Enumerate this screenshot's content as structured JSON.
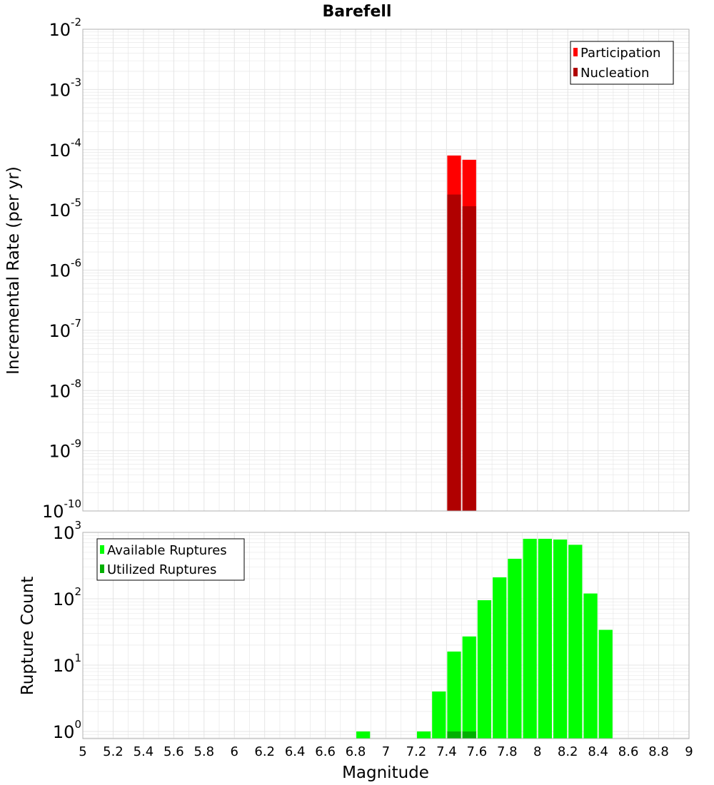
{
  "colors": {
    "participation": "#ff0000",
    "nucleation": "#b00000",
    "available": "#00ff00",
    "utilized": "#00b000",
    "grid": "#e4e4e4",
    "plot_border": "#b0b0b0"
  },
  "chart_data": [
    {
      "type": "bar",
      "title": "Barefell",
      "xlabel": "",
      "ylabel": "Incremental Rate (per yr)",
      "yscale": "log",
      "ylim": [
        1e-10,
        0.01
      ],
      "xlim": [
        5,
        9
      ],
      "bin_width": 0.1,
      "y_ticks": [
        {
          "base": "10",
          "exp": "-10",
          "value": 1e-10
        },
        {
          "base": "10",
          "exp": "-9",
          "value": 1e-09
        },
        {
          "base": "10",
          "exp": "-8",
          "value": 1e-08
        },
        {
          "base": "10",
          "exp": "-7",
          "value": 1e-07
        },
        {
          "base": "10",
          "exp": "-6",
          "value": 1e-06
        },
        {
          "base": "10",
          "exp": "-5",
          "value": 1e-05
        },
        {
          "base": "10",
          "exp": "-4",
          "value": 0.0001
        },
        {
          "base": "10",
          "exp": "-3",
          "value": 0.001
        },
        {
          "base": "10",
          "exp": "-2",
          "value": 0.01
        }
      ],
      "legend_position": "top-right",
      "series": [
        {
          "name": "Participation",
          "color_key": "participation",
          "x": [
            7.45,
            7.55
          ],
          "values": [
            8e-05,
            6.8e-05
          ]
        },
        {
          "name": "Nucleation",
          "color_key": "nucleation",
          "x": [
            7.45,
            7.55
          ],
          "values": [
            1.8e-05,
            1.15e-05
          ]
        }
      ]
    },
    {
      "type": "bar",
      "title": "",
      "xlabel": "Magnitude",
      "ylabel": "Rupture Count",
      "yscale": "log",
      "ylim": [
        0.78,
        1000
      ],
      "xlim": [
        5,
        9
      ],
      "bin_width": 0.1,
      "x_ticks": [
        "5",
        "5.2",
        "5.4",
        "5.6",
        "5.8",
        "6",
        "6.2",
        "6.4",
        "6.6",
        "6.8",
        "7",
        "7.2",
        "7.4",
        "7.6",
        "7.8",
        "8",
        "8.2",
        "8.4",
        "8.6",
        "8.8",
        "9"
      ],
      "y_ticks": [
        {
          "base": "10",
          "exp": "0",
          "value": 1
        },
        {
          "base": "10",
          "exp": "1",
          "value": 10
        },
        {
          "base": "10",
          "exp": "2",
          "value": 100
        },
        {
          "base": "10",
          "exp": "3",
          "value": 1000
        }
      ],
      "legend_position": "top-left",
      "series": [
        {
          "name": "Available Ruptures",
          "color_key": "available",
          "x": [
            6.85,
            7.25,
            7.35,
            7.45,
            7.55,
            7.65,
            7.75,
            7.85,
            7.95,
            8.05,
            8.15,
            8.25,
            8.35,
            8.45
          ],
          "values": [
            1,
            1,
            4,
            16,
            27,
            95,
            210,
            400,
            800,
            800,
            780,
            650,
            120,
            34
          ]
        },
        {
          "name": "Utilized Ruptures",
          "color_key": "utilized",
          "x": [
            7.45,
            7.55
          ],
          "values": [
            1,
            1
          ]
        }
      ]
    }
  ]
}
